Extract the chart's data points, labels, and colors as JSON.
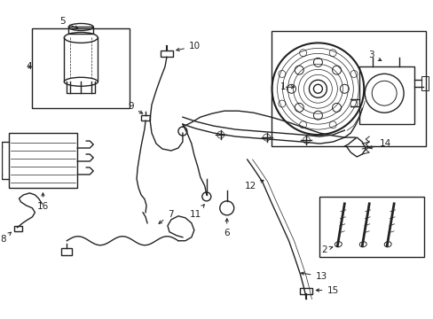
{
  "bg_color": "#ffffff",
  "lc": "#222222",
  "figsize": [
    4.89,
    3.6
  ],
  "dpi": 100,
  "xlim": [
    0,
    489
  ],
  "ylim": [
    0,
    360
  ]
}
